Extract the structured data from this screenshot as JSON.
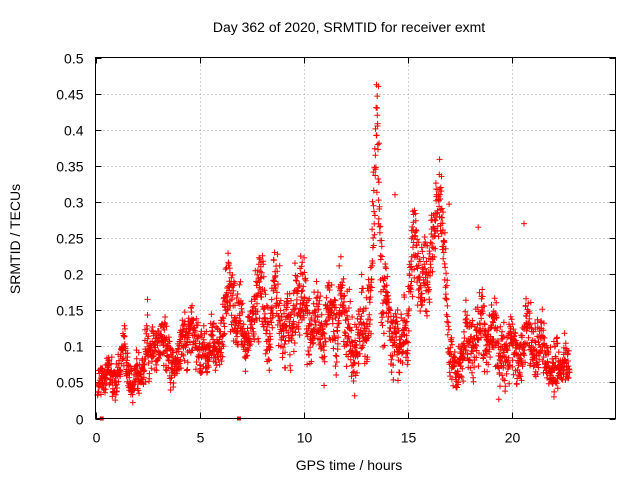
{
  "chart_data": {
    "type": "scatter",
    "title": "Day 362 of 2020, SRMTID for receiver exmt",
    "xlabel": "GPS time / hours",
    "ylabel": "SRMTID / TECUs",
    "xlim": [
      0,
      25
    ],
    "ylim": [
      0,
      0.5
    ],
    "xticks": [
      0,
      5,
      10,
      15,
      20
    ],
    "xtick_labels": [
      "0",
      "5",
      "10",
      "15",
      "20"
    ],
    "yticks": [
      0,
      0.05,
      0.1,
      0.15,
      0.2,
      0.25,
      0.3,
      0.35,
      0.4,
      0.45,
      0.5
    ],
    "ytick_labels": [
      "0",
      "0.05",
      "0.1",
      "0.15",
      "0.2",
      "0.25",
      "0.3",
      "0.35",
      "0.4",
      "0.45",
      "0.5"
    ],
    "grid": true,
    "marker": "+",
    "color": "#ff0000",
    "data_gaps_at_zero": [
      0.3,
      6.9
    ],
    "series": [
      {
        "name": "SRMTID",
        "x": [
          0.1,
          0.2,
          0.3,
          0.4,
          0.5,
          0.6,
          0.8,
          1.0,
          1.2,
          1.3,
          1.4,
          1.5,
          1.6,
          1.8,
          2.0,
          2.2,
          2.4,
          2.5,
          2.6,
          2.8,
          3.0,
          3.2,
          3.4,
          3.6,
          3.8,
          4.0,
          4.2,
          4.4,
          4.6,
          4.8,
          5.0,
          5.2,
          5.4,
          5.6,
          5.8,
          6.0,
          6.2,
          6.4,
          6.6,
          6.8,
          7.0,
          7.2,
          7.4,
          7.6,
          7.8,
          8.0,
          8.2,
          8.4,
          8.6,
          8.8,
          9.0,
          9.2,
          9.4,
          9.6,
          9.8,
          10.0,
          10.2,
          10.4,
          10.6,
          10.8,
          11.0,
          11.2,
          11.4,
          11.6,
          11.8,
          12.0,
          12.2,
          12.4,
          12.6,
          12.8,
          13.0,
          13.2,
          13.3,
          13.4,
          13.5,
          13.6,
          13.7,
          13.8,
          14.0,
          14.2,
          14.4,
          14.6,
          14.8,
          15.0,
          15.2,
          15.4,
          15.6,
          15.8,
          16.0,
          16.2,
          16.4,
          16.6,
          16.8,
          17.0,
          17.2,
          17.4,
          17.6,
          17.8,
          18.0,
          18.2,
          18.4,
          18.6,
          18.8,
          19.0,
          19.2,
          19.4,
          19.6,
          19.8,
          20.0,
          20.2,
          20.4,
          20.6,
          20.8,
          21.0,
          21.2,
          21.4,
          21.6,
          21.8,
          22.0,
          22.2,
          22.4,
          22.6,
          22.8
        ],
        "y": [
          0.04,
          0.05,
          0.06,
          0.045,
          0.05,
          0.07,
          0.06,
          0.05,
          0.08,
          0.09,
          0.11,
          0.07,
          0.06,
          0.04,
          0.07,
          0.05,
          0.09,
          0.1,
          0.08,
          0.11,
          0.09,
          0.12,
          0.1,
          0.08,
          0.07,
          0.09,
          0.12,
          0.1,
          0.13,
          0.11,
          0.09,
          0.1,
          0.08,
          0.12,
          0.09,
          0.11,
          0.14,
          0.18,
          0.16,
          0.13,
          0.15,
          0.1,
          0.12,
          0.14,
          0.17,
          0.19,
          0.13,
          0.11,
          0.2,
          0.16,
          0.1,
          0.14,
          0.12,
          0.17,
          0.15,
          0.18,
          0.13,
          0.11,
          0.15,
          0.12,
          0.09,
          0.16,
          0.14,
          0.1,
          0.19,
          0.12,
          0.13,
          0.08,
          0.11,
          0.14,
          0.12,
          0.17,
          0.21,
          0.3,
          0.41,
          0.35,
          0.24,
          0.15,
          0.18,
          0.1,
          0.13,
          0.09,
          0.11,
          0.12,
          0.22,
          0.26,
          0.17,
          0.21,
          0.19,
          0.25,
          0.28,
          0.31,
          0.22,
          0.1,
          0.07,
          0.06,
          0.08,
          0.12,
          0.1,
          0.09,
          0.13,
          0.15,
          0.08,
          0.11,
          0.14,
          0.07,
          0.1,
          0.08,
          0.12,
          0.09,
          0.07,
          0.11,
          0.14,
          0.1,
          0.08,
          0.12,
          0.09,
          0.07,
          0.06,
          0.08,
          0.07,
          0.09,
          0.06
        ],
        "y_spread": [
          0.02,
          0.02,
          0.02,
          0.02,
          0.02,
          0.02,
          0.02,
          0.025,
          0.025,
          0.025,
          0.03,
          0.025,
          0.025,
          0.02,
          0.025,
          0.025,
          0.03,
          0.035,
          0.03,
          0.03,
          0.03,
          0.03,
          0.03,
          0.03,
          0.025,
          0.03,
          0.03,
          0.03,
          0.03,
          0.03,
          0.03,
          0.03,
          0.025,
          0.03,
          0.03,
          0.03,
          0.04,
          0.05,
          0.04,
          0.04,
          0.04,
          0.035,
          0.04,
          0.04,
          0.05,
          0.05,
          0.04,
          0.035,
          0.05,
          0.05,
          0.04,
          0.045,
          0.04,
          0.05,
          0.045,
          0.05,
          0.045,
          0.04,
          0.045,
          0.04,
          0.035,
          0.045,
          0.045,
          0.04,
          0.05,
          0.04,
          0.045,
          0.035,
          0.04,
          0.045,
          0.04,
          0.05,
          0.06,
          0.08,
          0.08,
          0.08,
          0.06,
          0.05,
          0.05,
          0.04,
          0.045,
          0.035,
          0.04,
          0.04,
          0.05,
          0.05,
          0.05,
          0.05,
          0.05,
          0.05,
          0.05,
          0.05,
          0.05,
          0.04,
          0.025,
          0.025,
          0.03,
          0.04,
          0.035,
          0.035,
          0.045,
          0.05,
          0.035,
          0.04,
          0.045,
          0.035,
          0.04,
          0.035,
          0.04,
          0.035,
          0.03,
          0.04,
          0.045,
          0.04,
          0.035,
          0.04,
          0.035,
          0.03,
          0.03,
          0.035,
          0.03,
          0.035,
          0.03
        ],
        "outliers": [
          {
            "x": 2.5,
            "y": 0.165
          },
          {
            "x": 13.6,
            "y": 0.46
          },
          {
            "x": 13.55,
            "y": 0.42
          },
          {
            "x": 16.6,
            "y": 0.32
          },
          {
            "x": 17.0,
            "y": 0.297
          },
          {
            "x": 20.6,
            "y": 0.27
          },
          {
            "x": 18.4,
            "y": 0.265
          },
          {
            "x": 14.4,
            "y": 0.31
          },
          {
            "x": 15.2,
            "y": 0.26
          }
        ]
      }
    ]
  }
}
